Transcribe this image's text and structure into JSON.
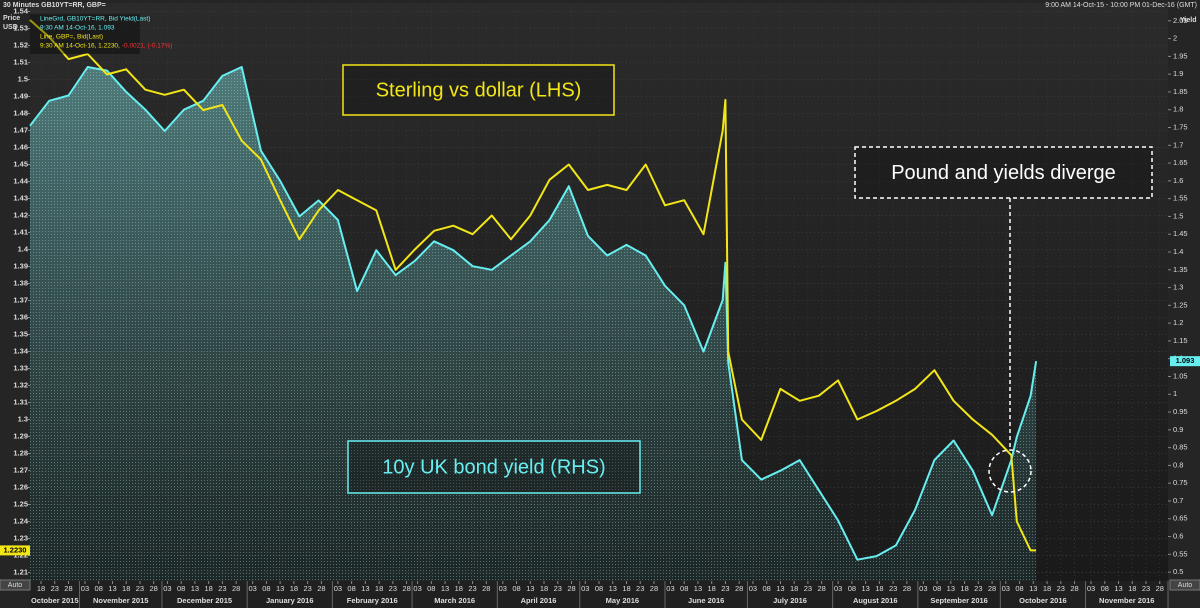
{
  "chart_data": {
    "type": "line",
    "title": "30 Minutes GB10YT=RR, GBP=",
    "subtitle": "9:00 AM 14-Oct-15 - 10:00 PM 01-Dec-16 (GMT)",
    "ylabel": [
      "Price",
      "USD"
    ],
    "y2label": "Yield",
    "auto_label": "Auto",
    "xlim": [
      "2015-10-14",
      "2016-12-01"
    ],
    "ylim": [
      1.205,
      1.545
    ],
    "y2lim": [
      0.475,
      2.1
    ],
    "yticks": [
      1.21,
      1.22,
      1.23,
      1.24,
      1.25,
      1.26,
      1.27,
      1.28,
      1.29,
      1.3,
      1.31,
      1.32,
      1.33,
      1.34,
      1.35,
      1.36,
      1.37,
      1.38,
      1.39,
      1.4,
      1.41,
      1.42,
      1.43,
      1.44,
      1.45,
      1.46,
      1.47,
      1.48,
      1.49,
      1.5,
      1.51,
      1.52,
      1.53,
      1.54
    ],
    "y2ticks": [
      0.5,
      0.55,
      0.6,
      0.65,
      0.7,
      0.75,
      0.8,
      0.85,
      0.9,
      0.95,
      1,
      1.05,
      1.1,
      1.15,
      1.2,
      1.25,
      1.3,
      1.35,
      1.4,
      1.45,
      1.5,
      1.55,
      1.6,
      1.65,
      1.7,
      1.75,
      1.8,
      1.85,
      1.9,
      1.95,
      2,
      2.05
    ],
    "grid": true,
    "xticks": [
      {
        "value": "2015-10-18",
        "label": "18"
      },
      {
        "value": "2015-10-23",
        "label": "23"
      },
      {
        "value": "2015-10-28",
        "label": "28"
      },
      {
        "value": "2015-11-03",
        "label": "03"
      },
      {
        "value": "2015-11-08",
        "label": "08"
      },
      {
        "value": "2015-11-13",
        "label": "13"
      },
      {
        "value": "2015-11-18",
        "label": "18"
      },
      {
        "value": "2015-11-23",
        "label": "23"
      },
      {
        "value": "2015-11-28",
        "label": "28"
      },
      {
        "value": "2015-12-03",
        "label": "03"
      },
      {
        "value": "2015-12-08",
        "label": "08"
      },
      {
        "value": "2015-12-13",
        "label": "13"
      },
      {
        "value": "2015-12-18",
        "label": "18"
      },
      {
        "value": "2015-12-23",
        "label": "23"
      },
      {
        "value": "2015-12-28",
        "label": "28"
      },
      {
        "value": "2016-01-03",
        "label": "03"
      },
      {
        "value": "2016-01-08",
        "label": "08"
      },
      {
        "value": "2016-01-13",
        "label": "13"
      },
      {
        "value": "2016-01-18",
        "label": "18"
      },
      {
        "value": "2016-01-23",
        "label": "23"
      },
      {
        "value": "2016-01-28",
        "label": "28"
      },
      {
        "value": "2016-02-03",
        "label": "03"
      },
      {
        "value": "2016-02-08",
        "label": "08"
      },
      {
        "value": "2016-02-13",
        "label": "13"
      },
      {
        "value": "2016-02-18",
        "label": "18"
      },
      {
        "value": "2016-02-23",
        "label": "23"
      },
      {
        "value": "2016-02-28",
        "label": "28"
      },
      {
        "value": "2016-03-03",
        "label": "03"
      },
      {
        "value": "2016-03-08",
        "label": "08"
      },
      {
        "value": "2016-03-13",
        "label": "13"
      },
      {
        "value": "2016-03-18",
        "label": "18"
      },
      {
        "value": "2016-03-23",
        "label": "23"
      },
      {
        "value": "2016-03-28",
        "label": "28"
      },
      {
        "value": "2016-04-03",
        "label": "03"
      },
      {
        "value": "2016-04-08",
        "label": "08"
      },
      {
        "value": "2016-04-13",
        "label": "13"
      },
      {
        "value": "2016-04-18",
        "label": "18"
      },
      {
        "value": "2016-04-23",
        "label": "23"
      },
      {
        "value": "2016-04-28",
        "label": "28"
      },
      {
        "value": "2016-05-03",
        "label": "03"
      },
      {
        "value": "2016-05-08",
        "label": "08"
      },
      {
        "value": "2016-05-13",
        "label": "13"
      },
      {
        "value": "2016-05-18",
        "label": "18"
      },
      {
        "value": "2016-05-23",
        "label": "23"
      },
      {
        "value": "2016-05-28",
        "label": "28"
      },
      {
        "value": "2016-06-03",
        "label": "03"
      },
      {
        "value": "2016-06-08",
        "label": "08"
      },
      {
        "value": "2016-06-13",
        "label": "13"
      },
      {
        "value": "2016-06-18",
        "label": "18"
      },
      {
        "value": "2016-06-23",
        "label": "23"
      },
      {
        "value": "2016-06-28",
        "label": "28"
      },
      {
        "value": "2016-07-03",
        "label": "03"
      },
      {
        "value": "2016-07-08",
        "label": "08"
      },
      {
        "value": "2016-07-13",
        "label": "13"
      },
      {
        "value": "2016-07-18",
        "label": "18"
      },
      {
        "value": "2016-07-23",
        "label": "23"
      },
      {
        "value": "2016-07-28",
        "label": "28"
      },
      {
        "value": "2016-08-03",
        "label": "03"
      },
      {
        "value": "2016-08-08",
        "label": "08"
      },
      {
        "value": "2016-08-13",
        "label": "13"
      },
      {
        "value": "2016-08-18",
        "label": "18"
      },
      {
        "value": "2016-08-23",
        "label": "23"
      },
      {
        "value": "2016-08-28",
        "label": "28"
      },
      {
        "value": "2016-09-03",
        "label": "03"
      },
      {
        "value": "2016-09-08",
        "label": "08"
      },
      {
        "value": "2016-09-13",
        "label": "13"
      },
      {
        "value": "2016-09-18",
        "label": "18"
      },
      {
        "value": "2016-09-23",
        "label": "23"
      },
      {
        "value": "2016-09-28",
        "label": "28"
      },
      {
        "value": "2016-10-03",
        "label": "03"
      },
      {
        "value": "2016-10-08",
        "label": "08"
      },
      {
        "value": "2016-10-13",
        "label": "13"
      },
      {
        "value": "2016-10-18",
        "label": "18"
      },
      {
        "value": "2016-10-23",
        "label": "23"
      },
      {
        "value": "2016-10-28",
        "label": "28"
      },
      {
        "value": "2016-11-03",
        "label": "03"
      },
      {
        "value": "2016-11-08",
        "label": "08"
      },
      {
        "value": "2016-11-13",
        "label": "13"
      },
      {
        "value": "2016-11-18",
        "label": "18"
      },
      {
        "value": "2016-11-23",
        "label": "23"
      },
      {
        "value": "2016-11-28",
        "label": "28"
      }
    ],
    "months": [
      {
        "value": "2015-10",
        "label": "October 2015"
      },
      {
        "value": "2015-11",
        "label": "November 2015"
      },
      {
        "value": "2015-12",
        "label": "December 2015"
      },
      {
        "value": "2016-01",
        "label": "January 2016"
      },
      {
        "value": "2016-02",
        "label": "February 2016"
      },
      {
        "value": "2016-03",
        "label": "March 2016"
      },
      {
        "value": "2016-04",
        "label": "April 2016"
      },
      {
        "value": "2016-05",
        "label": "May 2016"
      },
      {
        "value": "2016-06",
        "label": "June 2016"
      },
      {
        "value": "2016-07",
        "label": "July 2016"
      },
      {
        "value": "2016-08",
        "label": "August 2016"
      },
      {
        "value": "2016-09",
        "label": "September 2016"
      },
      {
        "value": "2016-10",
        "label": "October 2016"
      },
      {
        "value": "2016-11",
        "label": "November 2016"
      }
    ],
    "x": [
      "2015-10-14",
      "2015-10-21",
      "2015-10-28",
      "2015-11-04",
      "2015-11-11",
      "2015-11-18",
      "2015-11-25",
      "2015-12-02",
      "2015-12-09",
      "2015-12-16",
      "2015-12-23",
      "2015-12-30",
      "2016-01-06",
      "2016-01-13",
      "2016-01-20",
      "2016-01-27",
      "2016-02-03",
      "2016-02-10",
      "2016-02-17",
      "2016-02-24",
      "2016-03-02",
      "2016-03-09",
      "2016-03-16",
      "2016-03-23",
      "2016-03-30",
      "2016-04-06",
      "2016-04-13",
      "2016-04-20",
      "2016-04-27",
      "2016-05-04",
      "2016-05-11",
      "2016-05-18",
      "2016-05-25",
      "2016-06-01",
      "2016-06-08",
      "2016-06-15",
      "2016-06-22",
      "2016-06-23",
      "2016-06-24",
      "2016-06-29",
      "2016-07-06",
      "2016-07-13",
      "2016-07-20",
      "2016-07-27",
      "2016-08-03",
      "2016-08-10",
      "2016-08-17",
      "2016-08-24",
      "2016-08-31",
      "2016-09-07",
      "2016-09-14",
      "2016-09-21",
      "2016-09-28",
      "2016-10-05",
      "2016-10-07",
      "2016-10-12",
      "2016-10-14"
    ],
    "series": [
      {
        "name": "LineGrd, GB10YT=RR, Bid Yield(Last)",
        "last": "9:30 AM 14-Oct-16, 1.093",
        "color": "#66eef0",
        "axis": "y2",
        "area": true,
        "values": [
          1.755,
          1.825,
          1.84,
          1.92,
          1.91,
          1.85,
          1.8,
          1.74,
          1.8,
          1.825,
          1.895,
          1.92,
          1.685,
          1.6,
          1.5,
          1.545,
          1.49,
          1.29,
          1.405,
          1.335,
          1.375,
          1.43,
          1.405,
          1.36,
          1.35,
          1.39,
          1.43,
          1.49,
          1.585,
          1.445,
          1.39,
          1.42,
          1.39,
          1.305,
          1.25,
          1.12,
          1.265,
          1.37,
          1.09,
          0.815,
          0.76,
          0.785,
          0.815,
          0.73,
          0.645,
          0.535,
          0.545,
          0.575,
          0.675,
          0.815,
          0.87,
          0.785,
          0.66,
          0.815,
          0.88,
          0.995,
          1.093
        ]
      },
      {
        "name": "Line, GBP=, Bid(Last)",
        "last": "9:30 AM 14-Oct-16, 1.2230,",
        "change": "-0.0021, (-0.17%)",
        "last_label": "1.2230",
        "color": "#f2e617",
        "axis": "y",
        "values": [
          1.535,
          1.525,
          1.512,
          1.515,
          1.503,
          1.506,
          1.494,
          1.491,
          1.494,
          1.482,
          1.485,
          1.464,
          1.453,
          1.429,
          1.406,
          1.423,
          1.435,
          1.429,
          1.423,
          1.388,
          1.4,
          1.411,
          1.414,
          1.409,
          1.42,
          1.406,
          1.42,
          1.441,
          1.45,
          1.435,
          1.438,
          1.435,
          1.45,
          1.426,
          1.429,
          1.409,
          1.47,
          1.488,
          1.34,
          1.3,
          1.288,
          1.318,
          1.311,
          1.314,
          1.323,
          1.3,
          1.305,
          1.311,
          1.318,
          1.329,
          1.311,
          1.3,
          1.291,
          1.279,
          1.24,
          1.223,
          1.223
        ]
      }
    ],
    "annotations": [
      {
        "text": "Sterling vs dollar (LHS)"
      },
      {
        "text": "10y UK bond yield (RHS)"
      },
      {
        "text": "Pound and yields diverge"
      }
    ]
  }
}
